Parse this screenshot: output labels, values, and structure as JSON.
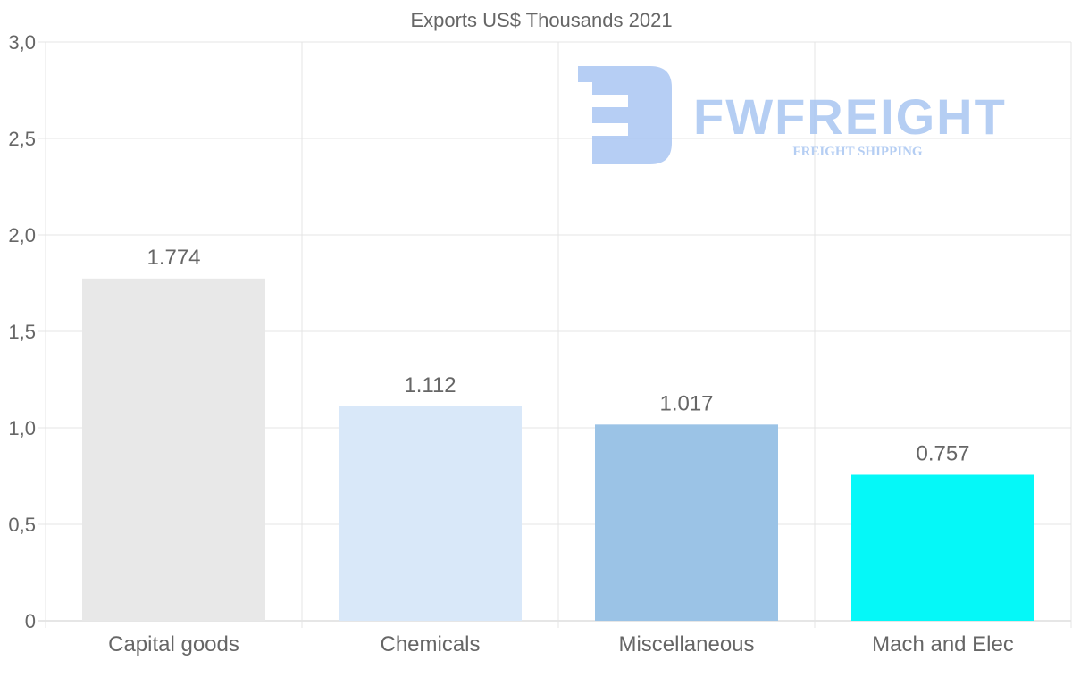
{
  "chart_data": {
    "type": "bar",
    "title": "Exports US$ Thousands 2021",
    "categories": [
      "Capital goods",
      "Chemicals",
      "Miscellaneous",
      "Mach and Elec"
    ],
    "values": [
      1.774,
      1.112,
      1.017,
      0.757
    ],
    "value_labels": [
      "1.774",
      "1.112",
      "1.017",
      "0.757"
    ],
    "colors": [
      "#e8e8e8",
      "#d9e8f9",
      "#9bc3e6",
      "#05f8f8"
    ],
    "xlabel": "",
    "ylabel": "",
    "ylim": [
      0,
      3
    ],
    "yticks": [
      0,
      0.5,
      1,
      1.5,
      2,
      2.5,
      3
    ],
    "ytick_labels": [
      "0",
      "0,5",
      "1,0",
      "1,5",
      "2,0",
      "2,5",
      "3,0"
    ],
    "grid": true,
    "legend": "none"
  },
  "watermark": {
    "brand": "FWFREIGHT",
    "tagline": "FREIGHT SHIPPING",
    "color": "#a9c6f2"
  }
}
